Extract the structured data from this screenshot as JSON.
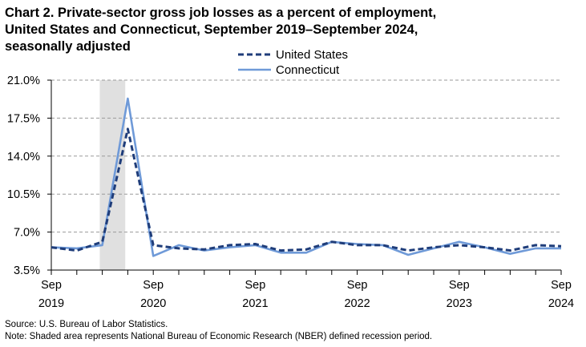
{
  "title_lines": [
    "Chart 2. Private-sector gross job losses as a percent of employment,",
    "United States and Connecticut, September 2019–September 2024,",
    "seasonally adjusted"
  ],
  "footnotes": {
    "source": "Source: U.S. Bureau of Labor Statistics.",
    "note": "Note: Shaded area represents National Bureau of Economic Research (NBER) defined  recession period."
  },
  "chart_data": {
    "type": "line",
    "x": [
      "Sep 2019",
      "Dec 2019",
      "Mar 2020",
      "Jun 2020",
      "Sep 2020",
      "Dec 2020",
      "Mar 2021",
      "Jun 2021",
      "Sep 2021",
      "Dec 2021",
      "Mar 2022",
      "Jun 2022",
      "Sep 2022",
      "Dec 2022",
      "Mar 2023",
      "Jun 2023",
      "Sep 2023",
      "Dec 2023",
      "Mar 2024",
      "Jun 2024",
      "Sep 2024"
    ],
    "x_tick_labels": [
      {
        "index": 0,
        "month": "Sep",
        "year": "2019"
      },
      {
        "index": 4,
        "month": "Sep",
        "year": "2020"
      },
      {
        "index": 8,
        "month": "Sep",
        "year": "2021"
      },
      {
        "index": 12,
        "month": "Sep",
        "year": "2022"
      },
      {
        "index": 16,
        "month": "Sep",
        "year": "2023"
      },
      {
        "index": 20,
        "month": "Sep",
        "year": "2024"
      }
    ],
    "series": [
      {
        "name": "United States",
        "style": "dashed",
        "color": "#1f3d7a",
        "values": [
          5.6,
          5.3,
          6.1,
          16.5,
          5.8,
          5.5,
          5.4,
          5.8,
          5.9,
          5.3,
          5.4,
          6.1,
          5.8,
          5.8,
          5.3,
          5.6,
          5.8,
          5.6,
          5.3,
          5.8,
          5.7
        ]
      },
      {
        "name": "Connecticut",
        "style": "solid",
        "color": "#6f9ad8",
        "values": [
          5.6,
          5.5,
          5.8,
          19.3,
          4.8,
          5.8,
          5.3,
          5.6,
          5.8,
          5.1,
          5.1,
          6.1,
          5.9,
          5.8,
          4.9,
          5.5,
          6.1,
          5.6,
          5.0,
          5.5,
          5.5
        ]
      }
    ],
    "y_ticks": [
      3.5,
      7.0,
      10.5,
      14.0,
      17.5,
      21.0
    ],
    "y_tick_labels": [
      "3.5%",
      "7.0%",
      "10.5%",
      "14.0%",
      "17.5%",
      "21.0%"
    ],
    "ylim": [
      3.5,
      21.0
    ],
    "grid": "horizontal dashed",
    "legend_position": "top-center",
    "recession_shading": {
      "from_index": 1.9,
      "to_index": 2.9,
      "color": "#e0e0e0"
    }
  }
}
